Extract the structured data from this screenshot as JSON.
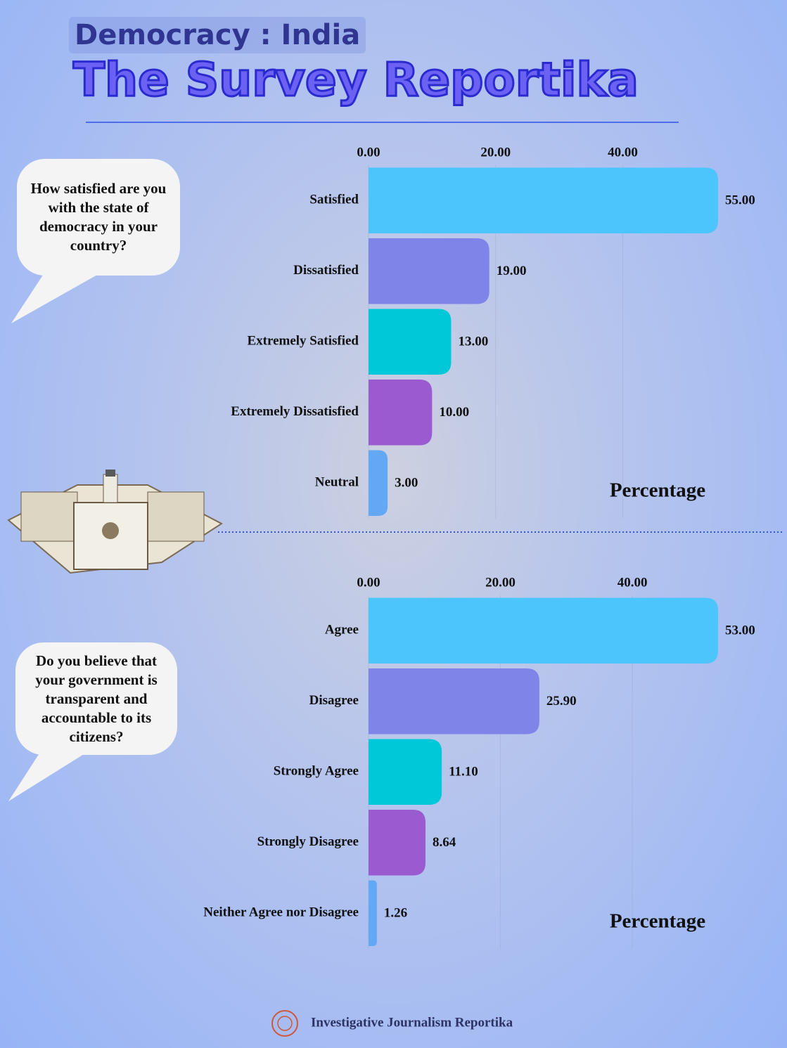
{
  "header": {
    "subtitle": "Democracy : India",
    "title": "The Survey Reportika"
  },
  "chart_data": [
    {
      "type": "bar",
      "orientation": "horizontal",
      "annotation": "How satisfied are you with the state of democracy in your country?",
      "categories": [
        "Satisfied",
        "Dissatisfied",
        "Extremely Satisfied",
        "Extremely Dissatisfied",
        "Neutral"
      ],
      "values": [
        55,
        19,
        13,
        10,
        3
      ],
      "value_labels": [
        "55.00",
        "19.00",
        "13.00",
        "10.00",
        "3.00"
      ],
      "colors": [
        "#4bc5fc",
        "#7f84e8",
        "#00c8d8",
        "#9a5ad0",
        "#62a8f5"
      ],
      "xlim": [
        0,
        55
      ],
      "xticks": [
        {
          "value": 0,
          "label": "0.00"
        },
        {
          "value": 20,
          "label": "20.00"
        },
        {
          "value": 40,
          "label": "40.00"
        }
      ],
      "xlabel": "Percentage",
      "grid": true
    },
    {
      "type": "bar",
      "orientation": "horizontal",
      "annotation": "Do you believe that your government is transparent and accountable to its citizens?",
      "categories": [
        "Agree",
        "Disagree",
        "Strongly Agree",
        "Strongly Disagree",
        "Neither Agree nor Disagree"
      ],
      "values": [
        53,
        25.9,
        11.1,
        8.64,
        1.26
      ],
      "value_labels": [
        "53.00",
        "25.90",
        "11.10",
        "8.64",
        "1.26"
      ],
      "colors": [
        "#4bc5fc",
        "#7f84e8",
        "#00c8d8",
        "#9a5ad0",
        "#62a8f5"
      ],
      "xlim": [
        0,
        53
      ],
      "xticks": [
        {
          "value": 0,
          "label": "0.00"
        },
        {
          "value": 20,
          "label": "20.00"
        },
        {
          "value": 40,
          "label": "40.00"
        }
      ],
      "xlabel": "Percentage",
      "grid": true
    }
  ],
  "footer": {
    "text": "Investigative Journalism Reportika"
  }
}
